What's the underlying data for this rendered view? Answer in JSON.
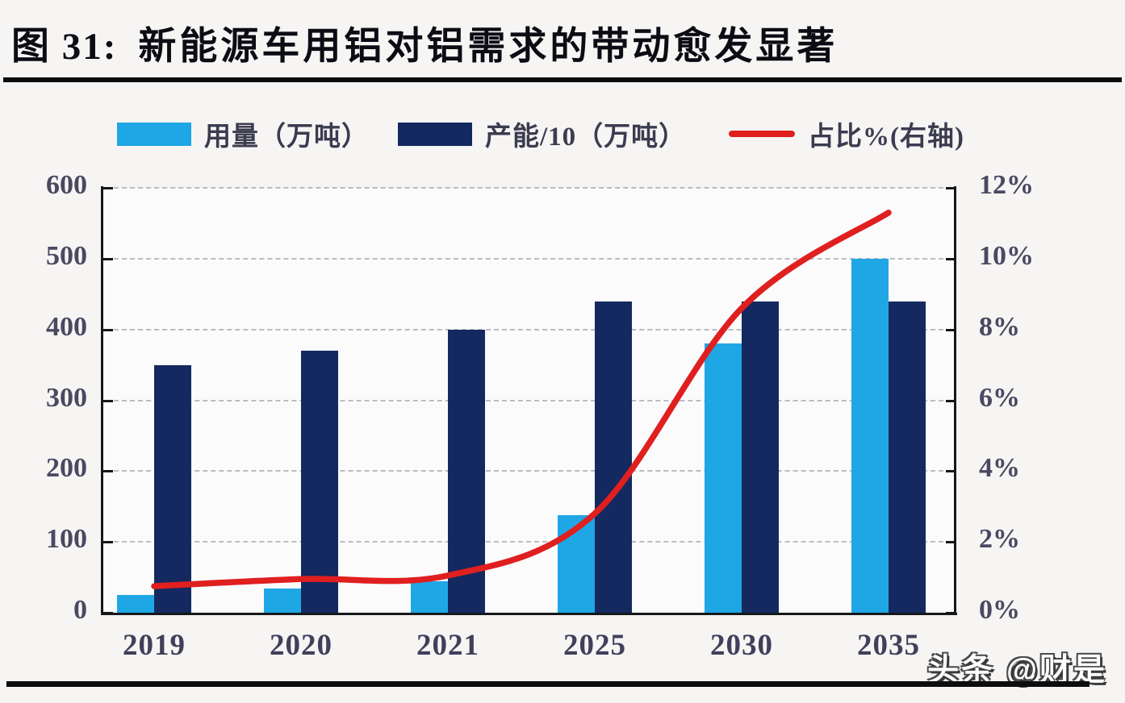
{
  "header": {
    "figure_label": "图 31:",
    "title": "新能源车用铝对铝需求的带动愈发显著"
  },
  "watermark": "头条 @财是",
  "chart_data": {
    "type": "bar+line combo",
    "categories": [
      "2019",
      "2020",
      "2021",
      "2025",
      "2030",
      "2035"
    ],
    "series": [
      {
        "name": "用量（万吨）",
        "type": "bar",
        "axis": "left",
        "color": "#1FA7E5",
        "values": [
          25,
          34,
          44,
          138,
          380,
          500
        ]
      },
      {
        "name": "产能/10（万吨）",
        "type": "bar",
        "axis": "left",
        "color": "#13295F",
        "values": [
          350,
          370,
          400,
          440,
          440,
          440
        ]
      },
      {
        "name": "占比%(右轴)",
        "type": "line",
        "axis": "right",
        "color": "#E01F1F",
        "values": [
          0.75,
          0.95,
          1.05,
          2.8,
          8.6,
          11.3
        ]
      }
    ],
    "left_axis": {
      "min": 0,
      "max": 600,
      "step": 100,
      "ticks": [
        "0",
        "100",
        "200",
        "300",
        "400",
        "500",
        "600"
      ]
    },
    "right_axis": {
      "min": 0,
      "max": 12,
      "step": 2,
      "ticks": [
        "0%",
        "2%",
        "4%",
        "6%",
        "8%",
        "10%",
        "12%"
      ]
    },
    "grid": {
      "horizontal": true,
      "style": "dashed",
      "color": "#A7A7B0"
    },
    "legend_position": "top",
    "axis_color": "#17171A",
    "tick_label_color": "#494961"
  }
}
